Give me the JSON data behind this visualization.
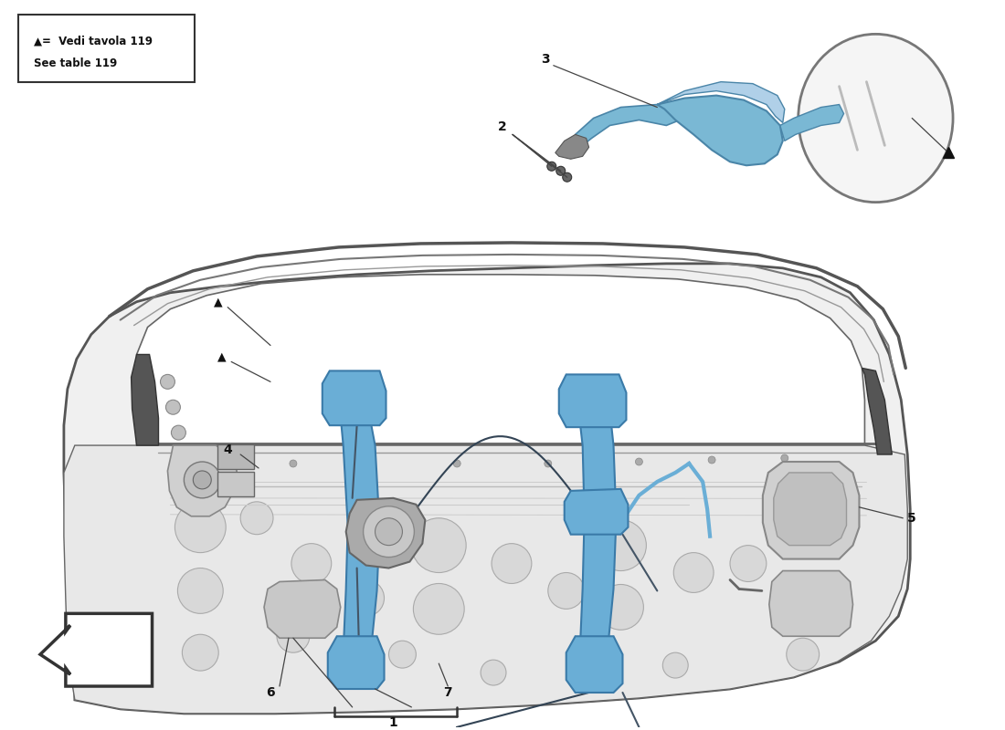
{
  "bg_color": "#ffffff",
  "legend_text_line1": "▲=  Vedi tavola 119",
  "legend_text_line2": "See table 119",
  "mirror_color": "#7ab8d4",
  "mirror_dark": "#4a85a8",
  "mirror_light": "#b0d0e8",
  "regulator_color": "#6aaed6",
  "regulator_dark": "#3a7aa8",
  "door_fill": "#f0f0f0",
  "door_edge": "#555555",
  "door_inner_fill": "#e0e0e0",
  "watermark_color1": "#cccccc",
  "watermark_color2": "#c8b840",
  "label_fontsize": 10,
  "label_color": "#111111",
  "line_color": "#333333",
  "arrow_color": "#111111"
}
